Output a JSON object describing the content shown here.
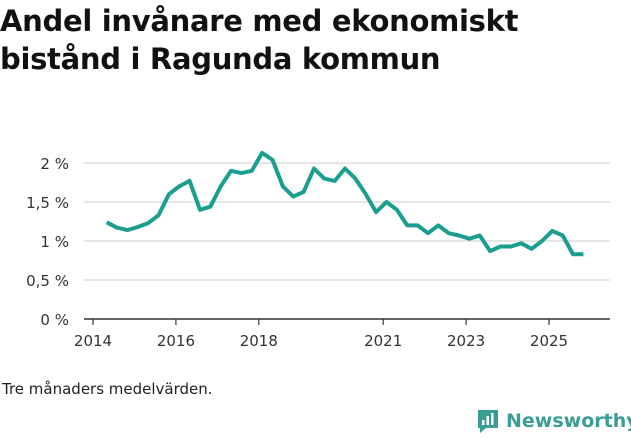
{
  "header": {
    "title_line1": "Andel invånare med ekonomiskt",
    "title_line2": "bistånd i Ragunda kommun"
  },
  "footnote": "Tre månaders medelvärden.",
  "brand": {
    "name": "Newsworthy",
    "color": "#3a9e94"
  },
  "colors": {
    "line": "#1a9e8e",
    "grid": "#cccccc",
    "axis": "#333333"
  },
  "chart_data": {
    "type": "line",
    "title": "Andel invånare med ekonomiskt bistånd i Ragunda kommun",
    "xlabel": "",
    "ylabel": "",
    "ylim": [
      0,
      2
    ],
    "xlim": [
      2014,
      2026.5
    ],
    "y_ticks": [
      {
        "value": 0,
        "label": "0 %"
      },
      {
        "value": 0.5,
        "label": "0,5 %"
      },
      {
        "value": 1,
        "label": "1 %"
      },
      {
        "value": 1.5,
        "label": "1,5 %"
      },
      {
        "value": 2,
        "label": "2 %"
      }
    ],
    "x_ticks": [
      {
        "value": 2014,
        "label": "2014"
      },
      {
        "value": 2016,
        "label": "2016"
      },
      {
        "value": 2018,
        "label": "2018"
      },
      {
        "value": 2021,
        "label": "2021"
      },
      {
        "value": 2023,
        "label": "2023"
      },
      {
        "value": 2025,
        "label": "2025"
      }
    ],
    "series": [
      {
        "name": "Andel invånare med ekonomiskt bistånd",
        "points": [
          [
            2014.33,
            1.24
          ],
          [
            2014.58,
            1.17
          ],
          [
            2014.83,
            1.14
          ],
          [
            2015.08,
            1.18
          ],
          [
            2015.33,
            1.23
          ],
          [
            2015.58,
            1.33
          ],
          [
            2015.83,
            1.6
          ],
          [
            2016.08,
            1.7
          ],
          [
            2016.33,
            1.77
          ],
          [
            2016.58,
            1.4
          ],
          [
            2016.83,
            1.44
          ],
          [
            2017.08,
            1.7
          ],
          [
            2017.33,
            1.9
          ],
          [
            2017.58,
            1.87
          ],
          [
            2017.83,
            1.9
          ],
          [
            2018.08,
            2.13
          ],
          [
            2018.33,
            2.04
          ],
          [
            2018.58,
            1.7
          ],
          [
            2018.83,
            1.57
          ],
          [
            2019.08,
            1.63
          ],
          [
            2019.33,
            1.93
          ],
          [
            2019.58,
            1.8
          ],
          [
            2019.83,
            1.77
          ],
          [
            2020.08,
            1.93
          ],
          [
            2020.33,
            1.8
          ],
          [
            2020.58,
            1.6
          ],
          [
            2020.83,
            1.37
          ],
          [
            2021.08,
            1.5
          ],
          [
            2021.33,
            1.4
          ],
          [
            2021.58,
            1.2
          ],
          [
            2021.83,
            1.2
          ],
          [
            2022.08,
            1.1
          ],
          [
            2022.33,
            1.2
          ],
          [
            2022.58,
            1.1
          ],
          [
            2022.83,
            1.07
          ],
          [
            2023.08,
            1.03
          ],
          [
            2023.33,
            1.07
          ],
          [
            2023.58,
            0.87
          ],
          [
            2023.83,
            0.93
          ],
          [
            2024.08,
            0.93
          ],
          [
            2024.33,
            0.97
          ],
          [
            2024.58,
            0.9
          ],
          [
            2024.83,
            1.0
          ],
          [
            2025.08,
            1.13
          ],
          [
            2025.33,
            1.07
          ],
          [
            2025.58,
            0.83
          ],
          [
            2025.83,
            0.83
          ]
        ]
      }
    ]
  }
}
